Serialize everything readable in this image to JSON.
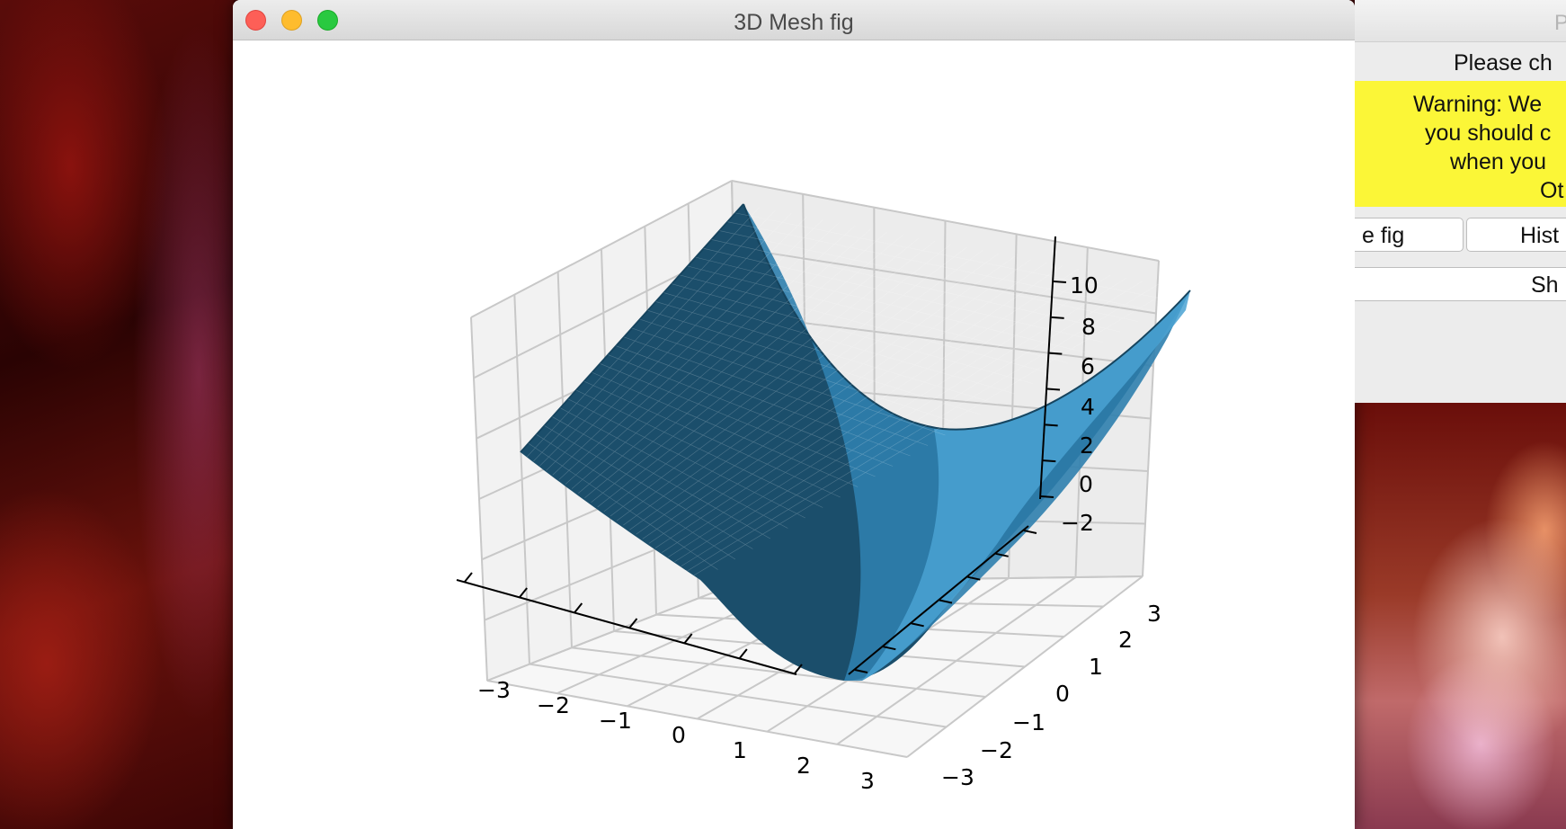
{
  "window": {
    "title": "3D Mesh fig"
  },
  "axes": {
    "z_ticks": [
      "10",
      "8",
      "6",
      "4",
      "2",
      "0",
      "−2"
    ],
    "x_ticks": [
      "−3",
      "−2",
      "−1",
      "0",
      "1",
      "2",
      "3"
    ],
    "y_ticks": [
      "−3",
      "−2",
      "−1",
      "0",
      "1",
      "2",
      "3"
    ]
  },
  "chart_data": {
    "type": "surface",
    "x_range": [
      -3,
      3
    ],
    "y_range": [
      -3,
      3
    ],
    "z_range": [
      -2,
      10
    ],
    "z_ticks": [
      -2,
      0,
      2,
      4,
      6,
      8,
      10
    ],
    "x_ticks": [
      -3,
      -2,
      -1,
      0,
      1,
      2,
      3
    ],
    "y_ticks": [
      -3,
      -2,
      -1,
      0,
      1,
      2,
      3
    ],
    "surface_color": "#3a8fc2",
    "grid": true
  },
  "side_window": {
    "title": "P",
    "prompt": "Please ch",
    "warning_lines": [
      "Warning: We",
      "you should c",
      "when you",
      "Ot"
    ],
    "button_fig": "e fig",
    "button_hist": "Hist",
    "button_show": "Sh"
  },
  "colors": {
    "close": "#fd5f57",
    "minimize": "#febc2e",
    "zoom": "#29c940",
    "warning_bg": "#fbf637"
  }
}
